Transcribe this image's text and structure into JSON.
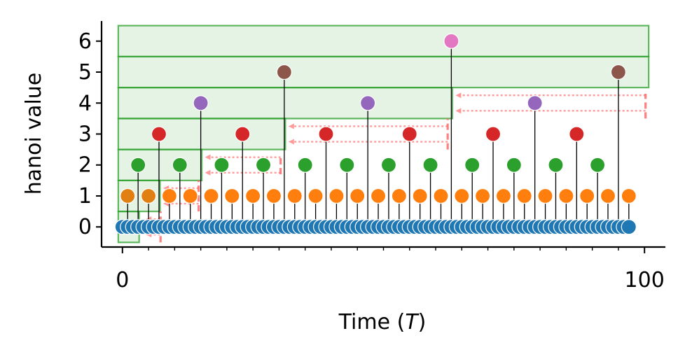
{
  "chart_data": {
    "type": "scatter",
    "xlabel_main": "Time (",
    "xlabel_var": "T",
    "xlabel_end": ")",
    "ylabel": "hanoi value",
    "xlim": [
      -4,
      104
    ],
    "ylim": [
      -0.65,
      6.65
    ],
    "x_ticks": [
      {
        "value": 0,
        "label": "0"
      },
      {
        "value": 100,
        "label": "100"
      }
    ],
    "y_ticks": [
      {
        "value": 0,
        "label": "0"
      },
      {
        "value": 1,
        "label": "1"
      },
      {
        "value": 2,
        "label": "2"
      },
      {
        "value": 3,
        "label": "3"
      },
      {
        "value": 4,
        "label": "4"
      },
      {
        "value": 5,
        "label": "5"
      },
      {
        "value": 6,
        "label": "6"
      }
    ],
    "x_minor_tick_step": 5,
    "grid": false,
    "stem_color": "#000000",
    "level_colors": [
      "#1f77b4",
      "#ff7f0e",
      "#2ca02c",
      "#d62728",
      "#9467bd",
      "#8c564b",
      "#e377c2"
    ],
    "level_step": [
      1,
      4,
      8,
      16,
      32,
      64,
      128
    ],
    "level_offset": [
      0,
      1,
      3,
      7,
      15,
      31,
      63
    ],
    "point_count": 98,
    "x_step": 1,
    "highlighted_points": [
      {
        "x": 1,
        "y": 1,
        "color": "#e07f12"
      },
      {
        "x": 5,
        "y": 1,
        "color": "#e07f12"
      }
    ],
    "boxes": [
      {
        "x0": -0.8,
        "x1": 3.2,
        "y0": -0.5,
        "y1": 0.5
      },
      {
        "x0": -0.8,
        "x1": 7.2,
        "y0": 0.5,
        "y1": 1.5
      },
      {
        "x0": -0.8,
        "x1": 15.2,
        "y0": 1.5,
        "y1": 2.5
      },
      {
        "x0": -0.8,
        "x1": 31.2,
        "y0": 2.5,
        "y1": 3.5
      },
      {
        "x0": -0.8,
        "x1": 63.2,
        "y0": 3.5,
        "y1": 4.5
      },
      {
        "x0": -0.8,
        "x1": 100.8,
        "y0": 4.5,
        "y1": 5.5
      },
      {
        "x0": -0.8,
        "x1": 100.8,
        "y0": 5.5,
        "y1": 6.5
      }
    ],
    "dashed_verticals": [
      {
        "x": 7.3,
        "y0": -0.5,
        "y1": 0.5
      },
      {
        "x": 14.6,
        "y0": 0.5,
        "y1": 1.5
      },
      {
        "x": 30.3,
        "y0": 1.7,
        "y1": 2.3
      },
      {
        "x": 62.3,
        "y0": 2.5,
        "y1": 3.5
      },
      {
        "x": 100.2,
        "y0": 3.5,
        "y1": 4.3
      }
    ],
    "dotted_arrows": [
      {
        "x_from": 7.2,
        "x_to": 4.5,
        "y": -0.25
      },
      {
        "x_from": 7.2,
        "x_to": 4.5,
        "y": 0.25
      },
      {
        "x_from": 14.6,
        "x_to": 7.8,
        "y": 0.75
      },
      {
        "x_from": 14.6,
        "x_to": 7.8,
        "y": 1.25
      },
      {
        "x_from": 30.3,
        "x_to": 15.8,
        "y": 1.75
      },
      {
        "x_from": 30.3,
        "x_to": 15.8,
        "y": 2.25
      },
      {
        "x_from": 62.3,
        "x_to": 31.8,
        "y": 2.75
      },
      {
        "x_from": 62.3,
        "x_to": 31.8,
        "y": 3.25
      },
      {
        "x_from": 100.2,
        "x_to": 63.8,
        "y": 3.75
      },
      {
        "x_from": 100.2,
        "x_to": 63.8,
        "y": 4.25
      }
    ]
  }
}
